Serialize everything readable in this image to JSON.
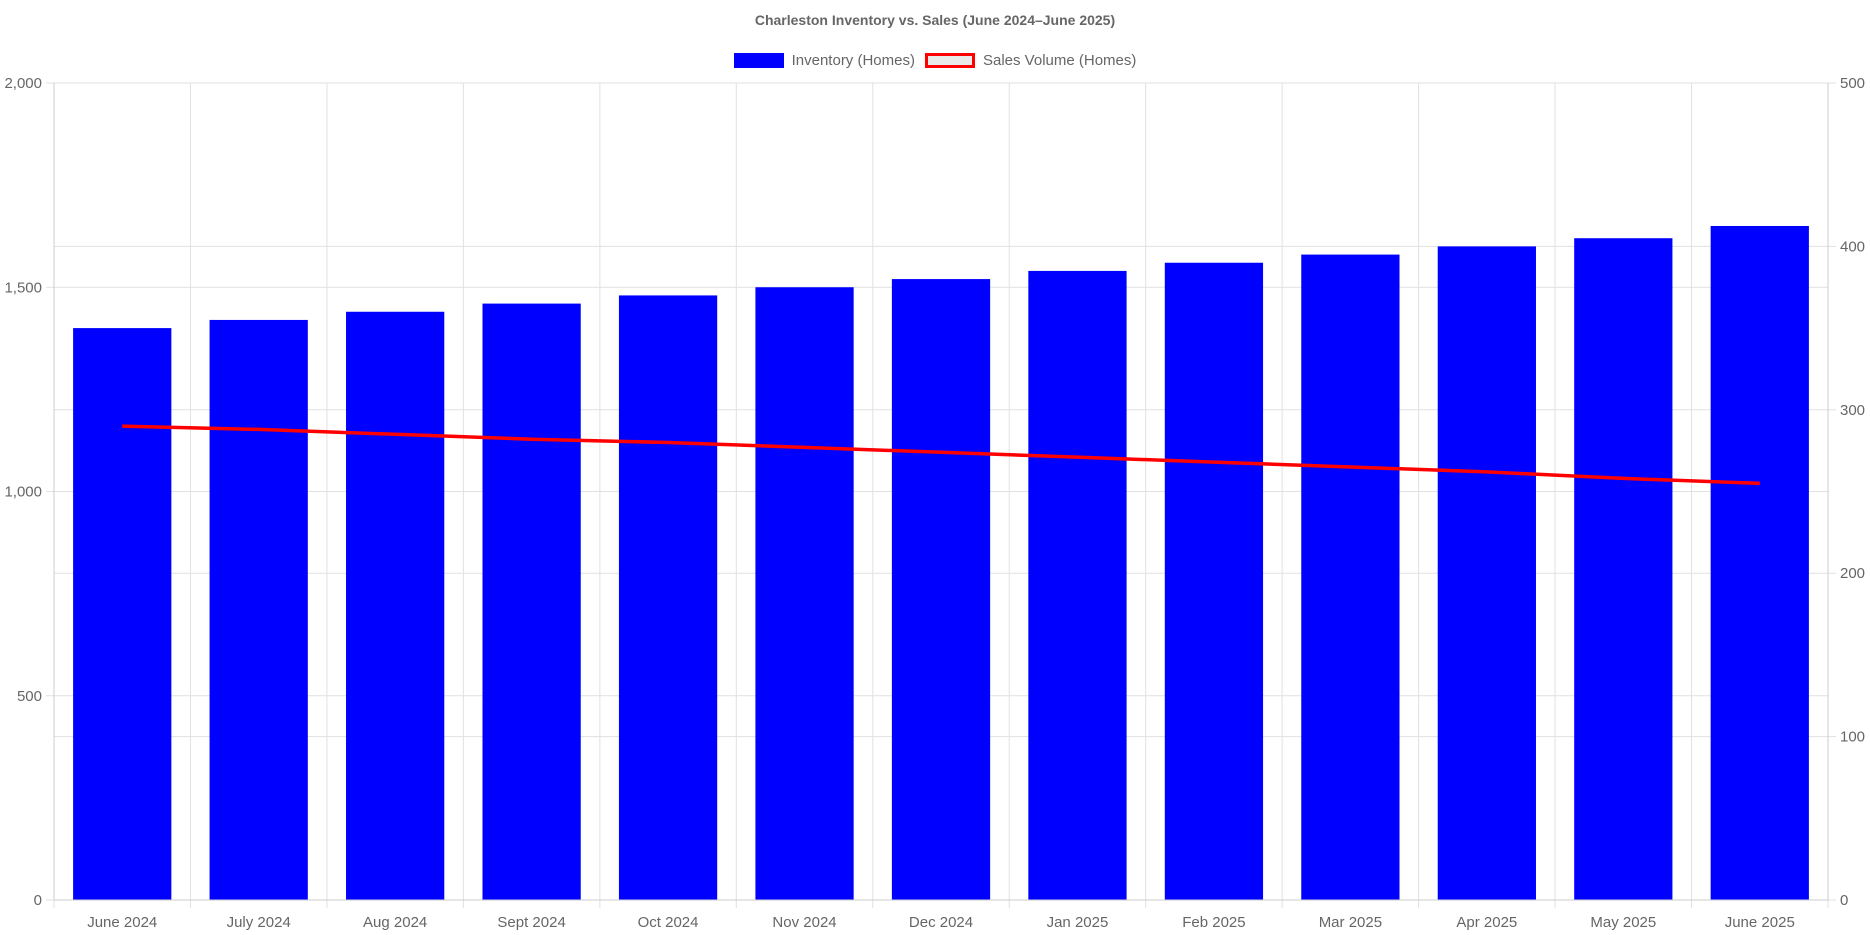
{
  "chart_data": {
    "type": "bar",
    "title": "Charleston Inventory vs. Sales (June 2024–June 2025)",
    "categories": [
      "June 2024",
      "July 2024",
      "Aug 2024",
      "Sept 2024",
      "Oct 2024",
      "Nov 2024",
      "Dec 2024",
      "Jan 2025",
      "Feb 2025",
      "Mar 2025",
      "Apr 2025",
      "May 2025",
      "June 2025"
    ],
    "series": [
      {
        "name": "Inventory (Homes)",
        "type": "bar",
        "axis": "left",
        "color": "#0000ff",
        "values": [
          1400,
          1420,
          1440,
          1460,
          1480,
          1500,
          1520,
          1540,
          1560,
          1580,
          1600,
          1620,
          1650
        ]
      },
      {
        "name": "Sales Volume (Homes)",
        "type": "line",
        "axis": "right",
        "color": "#ff0000",
        "values": [
          290,
          288,
          285,
          282,
          280,
          277,
          274,
          271,
          268,
          265,
          262,
          258,
          255
        ]
      }
    ],
    "y_left": {
      "min": 0,
      "max": 2000,
      "ticks": [
        "0",
        "500",
        "1,000",
        "1,500",
        "2,000"
      ]
    },
    "y_right": {
      "min": 0,
      "max": 500,
      "ticks": [
        "0",
        "100",
        "200",
        "300",
        "400",
        "500"
      ]
    },
    "grid": true,
    "legend_position": "top"
  }
}
